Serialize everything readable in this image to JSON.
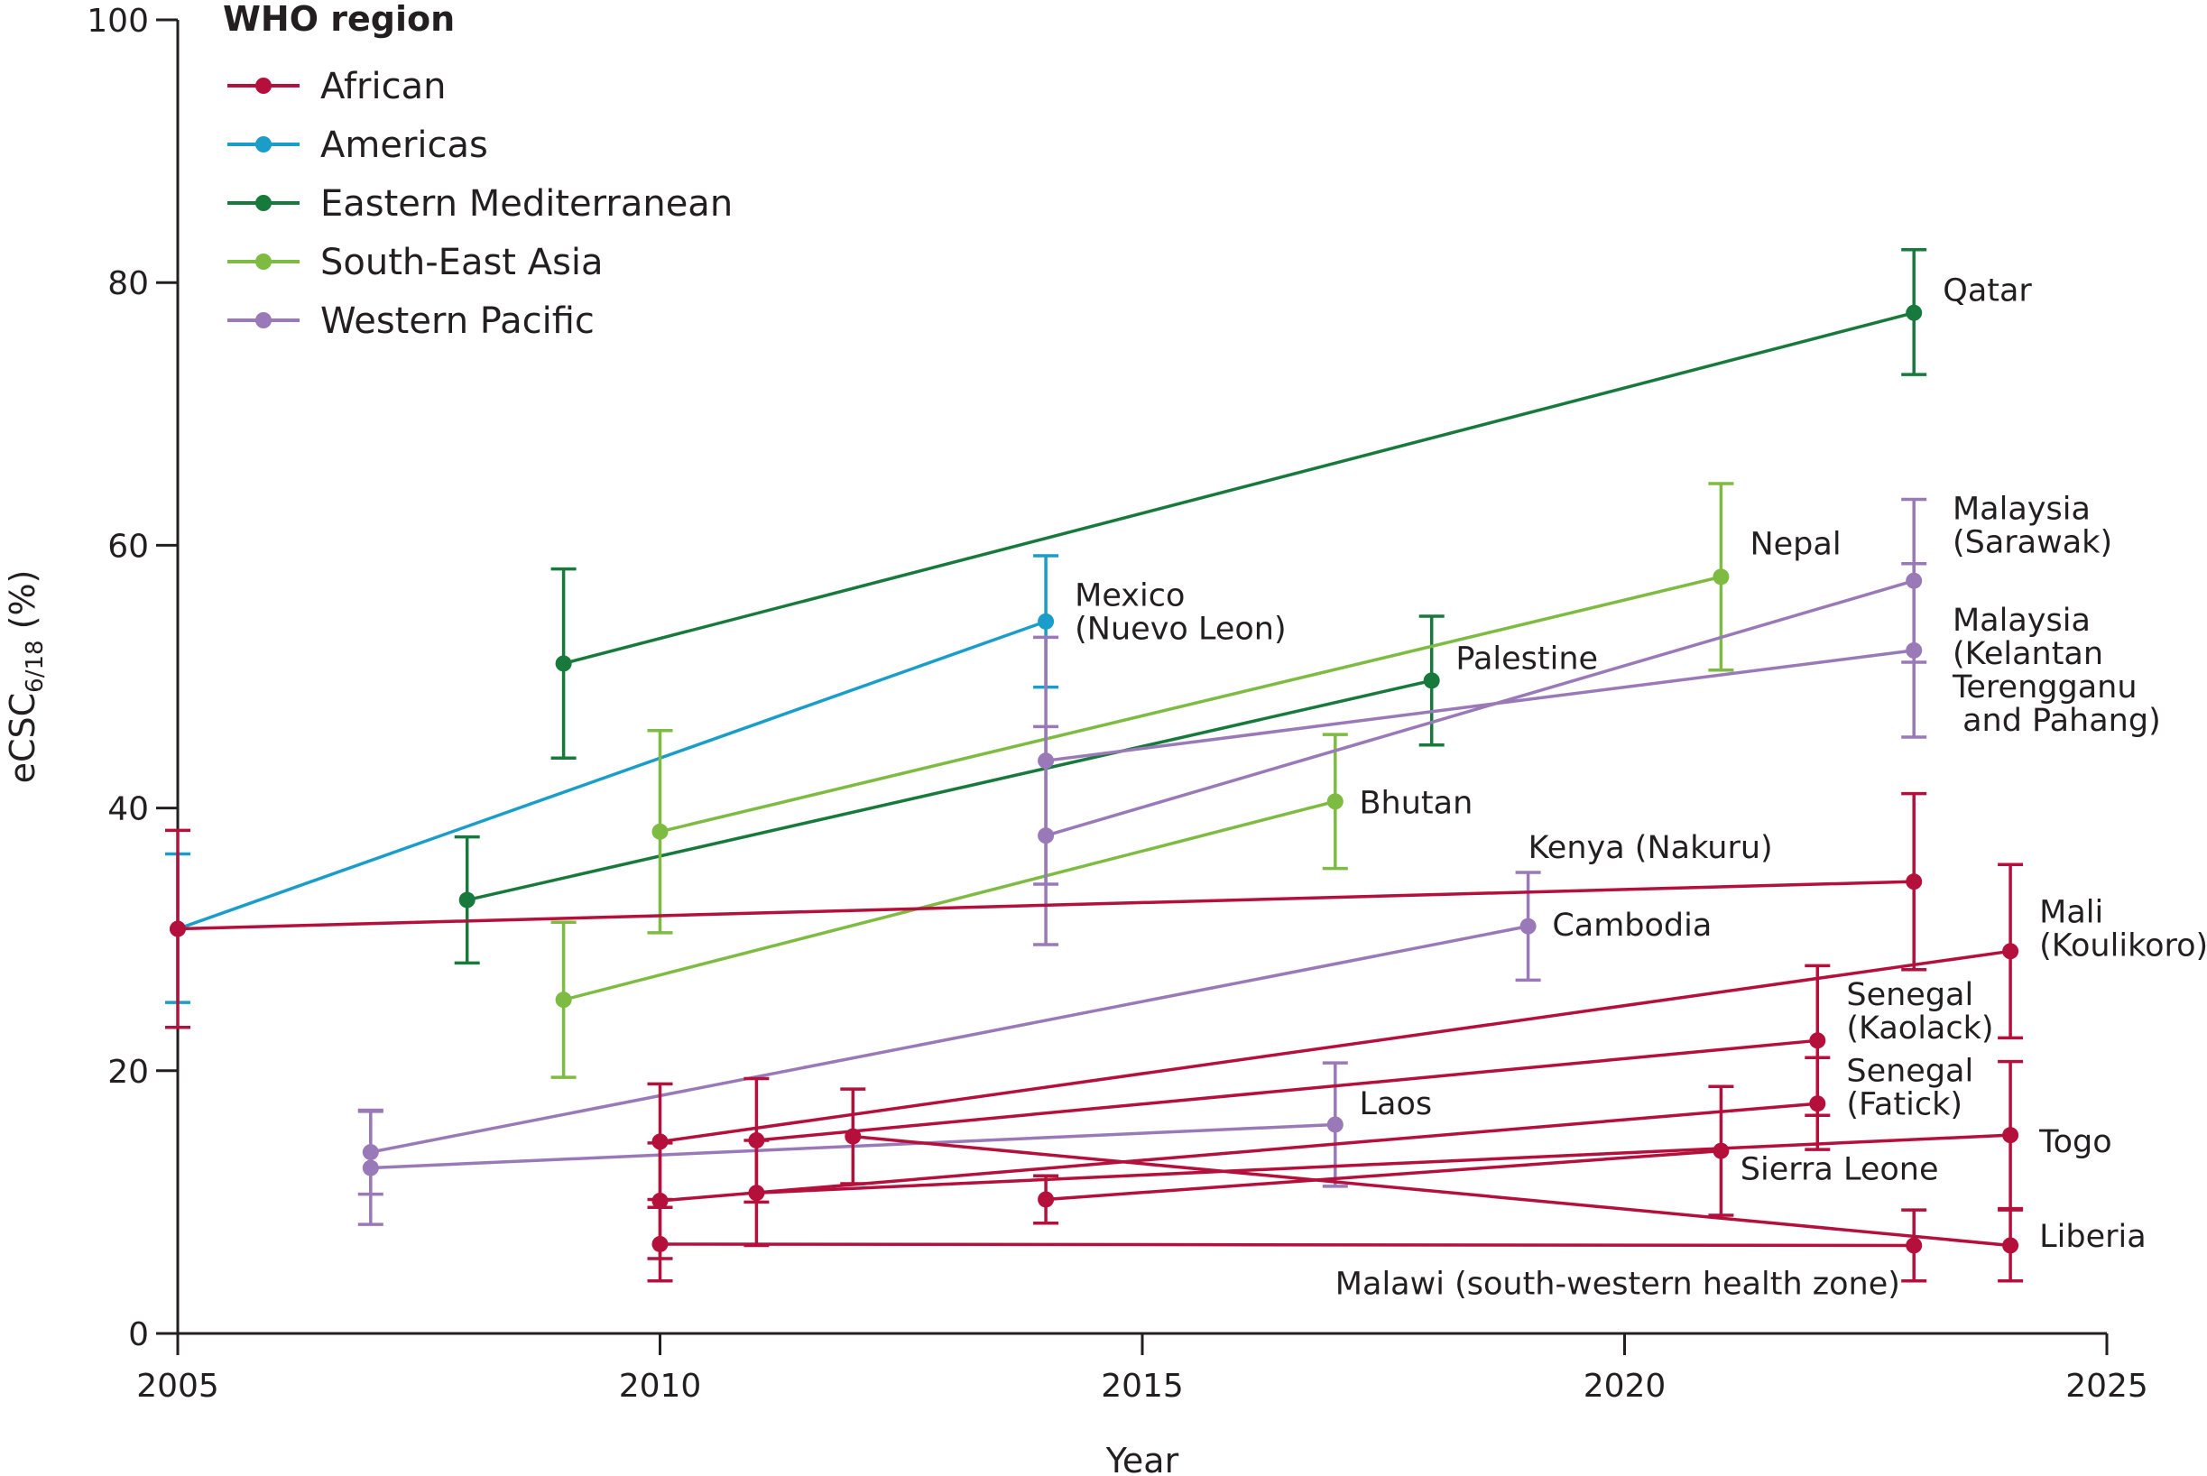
{
  "chart_data": {
    "type": "line",
    "xlabel": "Year",
    "ylabel": "eCSC",
    "ylabel_sub": "6/18",
    "ylabel_unit": "(%)",
    "xlim": [
      2005,
      2025
    ],
    "ylim": [
      0,
      100
    ],
    "x_ticks": [
      "2005",
      "2010",
      "2015",
      "2020",
      "2025"
    ],
    "y_ticks": [
      "0",
      "20",
      "40",
      "60",
      "80",
      "100"
    ],
    "grid": false,
    "legend": {
      "title": "WHO region",
      "placement": "top-left",
      "entries": [
        {
          "name": "African",
          "color": "#b5103c"
        },
        {
          "name": "Americas",
          "color": "#1a9ec9"
        },
        {
          "name": "Eastern Mediterranean",
          "color": "#177a3c"
        },
        {
          "name": "South-East Asia",
          "color": "#7dbb42"
        },
        {
          "name": "Western Pacific",
          "color": "#9a79b8"
        }
      ]
    },
    "series": [
      {
        "label": "Mexico (Nuevo Leon)",
        "region": "Americas",
        "points": [
          {
            "x": 2005,
            "y": 30.8,
            "lo": 25.2,
            "hi": 36.5
          },
          {
            "x": 2014,
            "y": 54.2,
            "lo": 49.2,
            "hi": 59.2
          }
        ]
      },
      {
        "label": "Qatar",
        "region": "Eastern Mediterranean",
        "points": [
          {
            "x": 2009,
            "y": 51.0,
            "lo": 43.8,
            "hi": 58.2
          },
          {
            "x": 2023,
            "y": 77.7,
            "lo": 73.0,
            "hi": 82.5
          }
        ]
      },
      {
        "label": "Palestine",
        "region": "Eastern Mediterranean",
        "points": [
          {
            "x": 2008,
            "y": 33.0,
            "lo": 28.2,
            "hi": 37.8
          },
          {
            "x": 2018,
            "y": 49.7,
            "lo": 44.8,
            "hi": 54.6
          }
        ]
      },
      {
        "label": "Nepal",
        "region": "South-East Asia",
        "points": [
          {
            "x": 2010,
            "y": 38.2,
            "lo": 30.5,
            "hi": 45.9
          },
          {
            "x": 2021,
            "y": 57.6,
            "lo": 50.5,
            "hi": 64.7
          }
        ]
      },
      {
        "label": "Bhutan",
        "region": "South-East Asia",
        "points": [
          {
            "x": 2009,
            "y": 25.4,
            "lo": 19.5,
            "hi": 31.3
          },
          {
            "x": 2017,
            "y": 40.5,
            "lo": 35.4,
            "hi": 45.6
          }
        ]
      },
      {
        "label": "Malaysia (Sarawak)",
        "region": "Western Pacific",
        "points": [
          {
            "x": 2014,
            "y": 37.9,
            "lo": 29.6,
            "hi": 46.2
          },
          {
            "x": 2023,
            "y": 57.3,
            "lo": 51.1,
            "hi": 63.5
          }
        ]
      },
      {
        "label": "Malaysia (Kelantan Terengganu and Pahang)",
        "region": "Western Pacific",
        "points": [
          {
            "x": 2014,
            "y": 43.6,
            "lo": 34.2,
            "hi": 53.0
          },
          {
            "x": 2023,
            "y": 52.0,
            "lo": 45.4,
            "hi": 58.6
          }
        ]
      },
      {
        "label": "Cambodia",
        "region": "Western Pacific",
        "points": [
          {
            "x": 2007,
            "y": 13.8,
            "lo": 10.6,
            "hi": 17.0
          },
          {
            "x": 2019,
            "y": 31.0,
            "lo": 26.9,
            "hi": 35.1
          }
        ]
      },
      {
        "label": "Laos",
        "region": "Western Pacific",
        "points": [
          {
            "x": 2007,
            "y": 12.6,
            "lo": 8.3,
            "hi": 16.9
          },
          {
            "x": 2017,
            "y": 15.9,
            "lo": 11.2,
            "hi": 20.6
          }
        ]
      },
      {
        "label": "Kenya (Nakuru)",
        "region": "African",
        "points": [
          {
            "x": 2005,
            "y": 30.8,
            "lo": 23.3,
            "hi": 38.3
          },
          {
            "x": 2023,
            "y": 34.4,
            "lo": 27.7,
            "hi": 41.1
          }
        ]
      },
      {
        "label": "Mali (Koulikoro)",
        "region": "African",
        "points": [
          {
            "x": 2010,
            "y": 14.6,
            "lo": 10.2,
            "hi": 19.0
          },
          {
            "x": 2024,
            "y": 29.1,
            "lo": 22.5,
            "hi": 35.7
          }
        ]
      },
      {
        "label": "Senegal (Kaolack)",
        "region": "African",
        "points": [
          {
            "x": 2011,
            "y": 14.7,
            "lo": 10.0,
            "hi": 19.4
          },
          {
            "x": 2022,
            "y": 22.3,
            "lo": 16.6,
            "hi": 28.0
          }
        ]
      },
      {
        "label": "Senegal (Fatick)",
        "region": "African",
        "points": [
          {
            "x": 2010,
            "y": 10.1,
            "lo": 5.7,
            "hi": 14.5
          },
          {
            "x": 2022,
            "y": 17.5,
            "lo": 14.0,
            "hi": 21.0
          }
        ]
      },
      {
        "label": "Sierra Leone",
        "region": "African",
        "points": [
          {
            "x": 2014,
            "y": 10.2,
            "lo": 8.4,
            "hi": 12.0
          },
          {
            "x": 2021,
            "y": 13.9,
            "lo": 9.0,
            "hi": 18.8
          }
        ]
      },
      {
        "label": "Togo",
        "region": "African",
        "points": [
          {
            "x": 2011,
            "y": 10.7,
            "lo": 6.7,
            "hi": 14.7
          },
          {
            "x": 2024,
            "y": 15.1,
            "lo": 9.5,
            "hi": 20.7
          }
        ]
      },
      {
        "label": "Liberia",
        "region": "African",
        "points": [
          {
            "x": 2012,
            "y": 15.0,
            "lo": 11.4,
            "hi": 18.6
          },
          {
            "x": 2024,
            "y": 6.7,
            "lo": 4.0,
            "hi": 9.4
          }
        ]
      },
      {
        "label": "Malawi (south-western health zone)",
        "region": "African",
        "points": [
          {
            "x": 2010,
            "y": 6.8,
            "lo": 4.0,
            "hi": 9.6
          },
          {
            "x": 2023,
            "y": 6.7,
            "lo": 4.0,
            "hi": 9.4
          }
        ]
      }
    ],
    "annotations": [
      {
        "lines": [
          "Qatar"
        ],
        "x": 2023.3,
        "y": 78.6
      },
      {
        "lines": [
          "Malaysia",
          "(Sarawak)"
        ],
        "x": 2023.4,
        "y": 62.0
      },
      {
        "lines": [
          "Nepal"
        ],
        "x": 2021.3,
        "y": 59.3
      },
      {
        "lines": [
          "Mexico",
          "(Nuevo Leon)"
        ],
        "x": 2014.3,
        "y": 55.4
      },
      {
        "lines": [
          "Malaysia",
          "(Kelantan",
          "Terengganu",
          " and Pahang)"
        ],
        "x": 2023.4,
        "y": 53.5
      },
      {
        "lines": [
          "Palestine"
        ],
        "x": 2018.25,
        "y": 50.6
      },
      {
        "lines": [
          "Bhutan"
        ],
        "x": 2017.25,
        "y": 39.6
      },
      {
        "lines": [
          "Kenya (Nakuru)"
        ],
        "x": 2019.0,
        "y": 36.2
      },
      {
        "lines": [
          "Cambodia"
        ],
        "x": 2019.25,
        "y": 30.3
      },
      {
        "lines": [
          "Mali",
          "(Koulikoro)"
        ],
        "x": 2024.3,
        "y": 31.3
      },
      {
        "lines": [
          "Senegal",
          "(Kaolack)"
        ],
        "x": 2022.3,
        "y": 25.0
      },
      {
        "lines": [
          "Senegal",
          "(Fatick)"
        ],
        "x": 2022.3,
        "y": 19.2
      },
      {
        "lines": [
          "Laos"
        ],
        "x": 2017.25,
        "y": 16.7
      },
      {
        "lines": [
          "Togo"
        ],
        "x": 2024.3,
        "y": 13.8
      },
      {
        "lines": [
          "Sierra Leone"
        ],
        "x": 2021.2,
        "y": 11.7
      },
      {
        "lines": [
          "Liberia"
        ],
        "x": 2024.3,
        "y": 6.6
      },
      {
        "lines": [
          "Malawi (south-western health zone)"
        ],
        "x": 2017.0,
        "y": 3.0
      }
    ]
  }
}
